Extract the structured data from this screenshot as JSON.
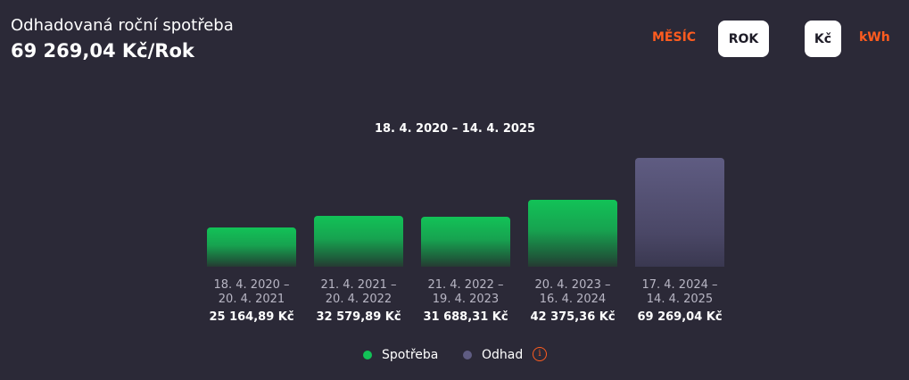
{
  "header": {
    "title": "Odhadovaná roční spotřeba",
    "value": "69 269,04 Kč/Rok"
  },
  "controls": {
    "period_month": "MĚSÍC",
    "period_year": "ROK",
    "unit_czk": "Kč",
    "unit_kwh": "kWh",
    "active_period": "ROK",
    "active_unit": "Kč"
  },
  "colors": {
    "background": "#2b2937",
    "accent": "#ff5c1f",
    "consumption": "#12c257",
    "estimate": "#5f5c82"
  },
  "chart_data": {
    "type": "bar",
    "title": "18. 4. 2020 – 14. 4. 2025",
    "categories": [
      [
        "18. 4. 2020 –",
        "20. 4. 2021"
      ],
      [
        "21. 4. 2021 –",
        "20. 4. 2022"
      ],
      [
        "21. 4. 2022 –",
        "19. 4. 2023"
      ],
      [
        "20. 4. 2023 –",
        "16. 4. 2024"
      ],
      [
        "17. 4. 2024 –",
        "14. 4. 2025"
      ]
    ],
    "values": [
      25164.89,
      32579.89,
      31688.31,
      42375.36,
      69269.04
    ],
    "value_labels": [
      "25 164,89 Kč",
      "32 579,89 Kč",
      "31 688,31 Kč",
      "42 375,36 Kč",
      "69 269,04 Kč"
    ],
    "series_type": [
      "Spotřeba",
      "Spotřeba",
      "Spotřeba",
      "Spotřeba",
      "Odhad"
    ],
    "legend": [
      {
        "name": "Spotřeba",
        "color": "#12c257"
      },
      {
        "name": "Odhad",
        "color": "#5f5c82"
      }
    ],
    "legend_placement": "bottom-center",
    "grid": false,
    "ylim": [
      0,
      69269.04
    ]
  }
}
